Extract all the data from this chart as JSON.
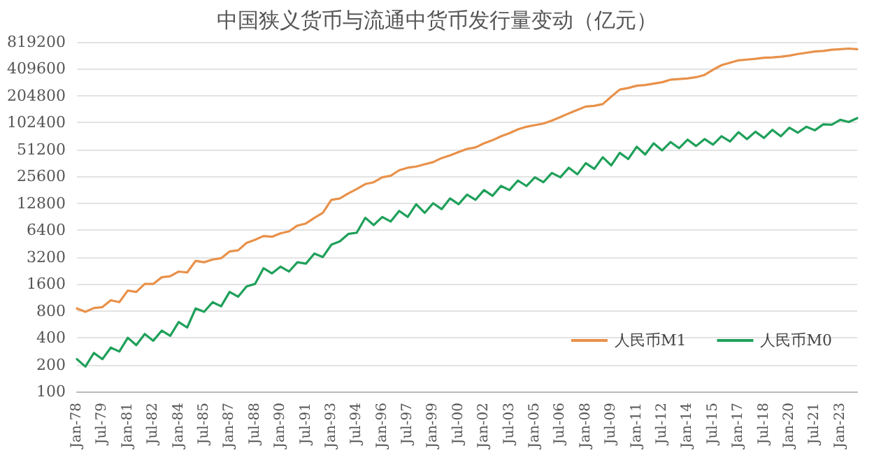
{
  "chart_data": {
    "type": "line",
    "title": "中国狭义货币与流通中货币发行量变动（亿元）",
    "categories": [
      "Jan-78",
      null,
      null,
      "Jul-79",
      null,
      null,
      "Jan-81",
      null,
      null,
      "Jul-82",
      null,
      null,
      "Jan-84",
      null,
      null,
      "Jul-85",
      null,
      null,
      "Jan-87",
      null,
      null,
      "Jul-88",
      null,
      null,
      "Jan-90",
      null,
      null,
      "Jul-91",
      null,
      null,
      "Jan-93",
      null,
      null,
      "Jul-94",
      null,
      null,
      "Jan-96",
      null,
      null,
      "Jul-97",
      null,
      null,
      "Jan-99",
      null,
      null,
      "Jul-00",
      null,
      null,
      "Jan-02",
      null,
      null,
      "Jul-03",
      null,
      null,
      "Jan-05",
      null,
      null,
      "Jul-06",
      null,
      null,
      "Jan-08",
      null,
      null,
      "Jul-09",
      null,
      null,
      "Jan-11",
      null,
      null,
      "Jul-12",
      null,
      null,
      "Jan-14",
      null,
      null,
      "Jul-15",
      null,
      null,
      "Jan-17",
      null,
      null,
      "Jul-18",
      null,
      null,
      "Jan-20",
      null,
      null,
      "Jul-21",
      null,
      null,
      "Jan-23",
      null,
      null
    ],
    "series": [
      {
        "name": "人民币M1",
        "color": "#e8914a",
        "values": [
          850,
          780,
          860,
          880,
          1050,
          1000,
          1350,
          1300,
          1600,
          1600,
          1900,
          1950,
          2200,
          2150,
          2900,
          2800,
          3000,
          3100,
          3700,
          3800,
          4600,
          5000,
          5500,
          5400,
          5900,
          6200,
          7200,
          7600,
          8800,
          10000,
          14000,
          14500,
          16500,
          18500,
          21000,
          22000,
          25000,
          26000,
          30000,
          32000,
          33000,
          35000,
          37000,
          41000,
          44000,
          48000,
          52000,
          54000,
          60000,
          65000,
          72000,
          78000,
          86000,
          92000,
          96000,
          100000,
          108000,
          118000,
          130000,
          142000,
          155000,
          158000,
          165000,
          200000,
          240000,
          250000,
          265000,
          270000,
          280000,
          290000,
          310000,
          315000,
          320000,
          330000,
          350000,
          400000,
          450000,
          480000,
          510000,
          520000,
          530000,
          545000,
          550000,
          560000,
          575000,
          600000,
          620000,
          640000,
          650000,
          670000,
          680000,
          690000,
          680000
        ]
      },
      {
        "name": "人民币M0",
        "color": "#1fa05a",
        "values": [
          230,
          190,
          270,
          230,
          310,
          280,
          400,
          330,
          440,
          370,
          480,
          420,
          600,
          520,
          850,
          780,
          1000,
          900,
          1300,
          1150,
          1500,
          1600,
          2400,
          2100,
          2500,
          2200,
          2800,
          2700,
          3500,
          3200,
          4400,
          4800,
          5800,
          6000,
          8800,
          7300,
          9000,
          8000,
          10500,
          9000,
          12500,
          10000,
          12800,
          11000,
          14500,
          12500,
          16000,
          14000,
          18000,
          15500,
          20000,
          18000,
          23000,
          20000,
          25000,
          22000,
          28000,
          25000,
          32000,
          27000,
          36000,
          31000,
          42000,
          34000,
          47000,
          40000,
          55000,
          45000,
          60000,
          50000,
          62000,
          53000,
          66000,
          56000,
          67000,
          58000,
          72000,
          63000,
          80000,
          67000,
          81000,
          69000,
          85000,
          72000,
          90000,
          79000,
          92000,
          84000,
          98000,
          97000,
          110000,
          104000,
          115000
        ]
      }
    ],
    "log": true,
    "ylim": [
      100,
      819200
    ],
    "yticks": [
      100,
      200,
      400,
      800,
      1600,
      3200,
      6400,
      12800,
      25600,
      51200,
      102400,
      204800,
      409600,
      819200
    ],
    "grid": "y",
    "legend": "bottom right",
    "marker": "none",
    "line_style": "solid"
  }
}
